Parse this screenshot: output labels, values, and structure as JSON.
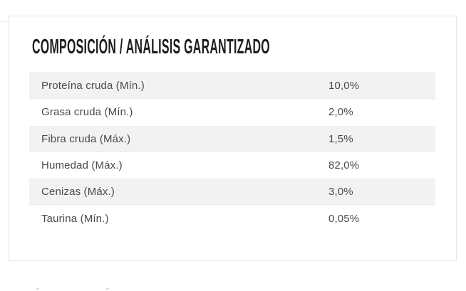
{
  "page": {
    "background_color": "#ffffff"
  },
  "card": {
    "title": "COMPOSICIÓN / ANÁLISIS GARANTIZADO",
    "title_color": "#1d1d1b",
    "border_color": "#e8e8e8"
  },
  "table": {
    "stripe_color": "#f2f2f2",
    "text_color": "#4a4a4a",
    "rows": [
      {
        "label": "Proteína cruda (Mín.)",
        "value": "10,0%"
      },
      {
        "label": "Grasa cruda (Mín.)",
        "value": "2,0%"
      },
      {
        "label": "Fibra cruda (Máx.)",
        "value": "1,5%"
      },
      {
        "label": "Humedad (Máx.)",
        "value": "82,0%"
      },
      {
        "label": "Cenizas (Máx.)",
        "value": "3,0%"
      },
      {
        "label": "Taurina (Mín.)",
        "value": "0,05%"
      }
    ]
  }
}
